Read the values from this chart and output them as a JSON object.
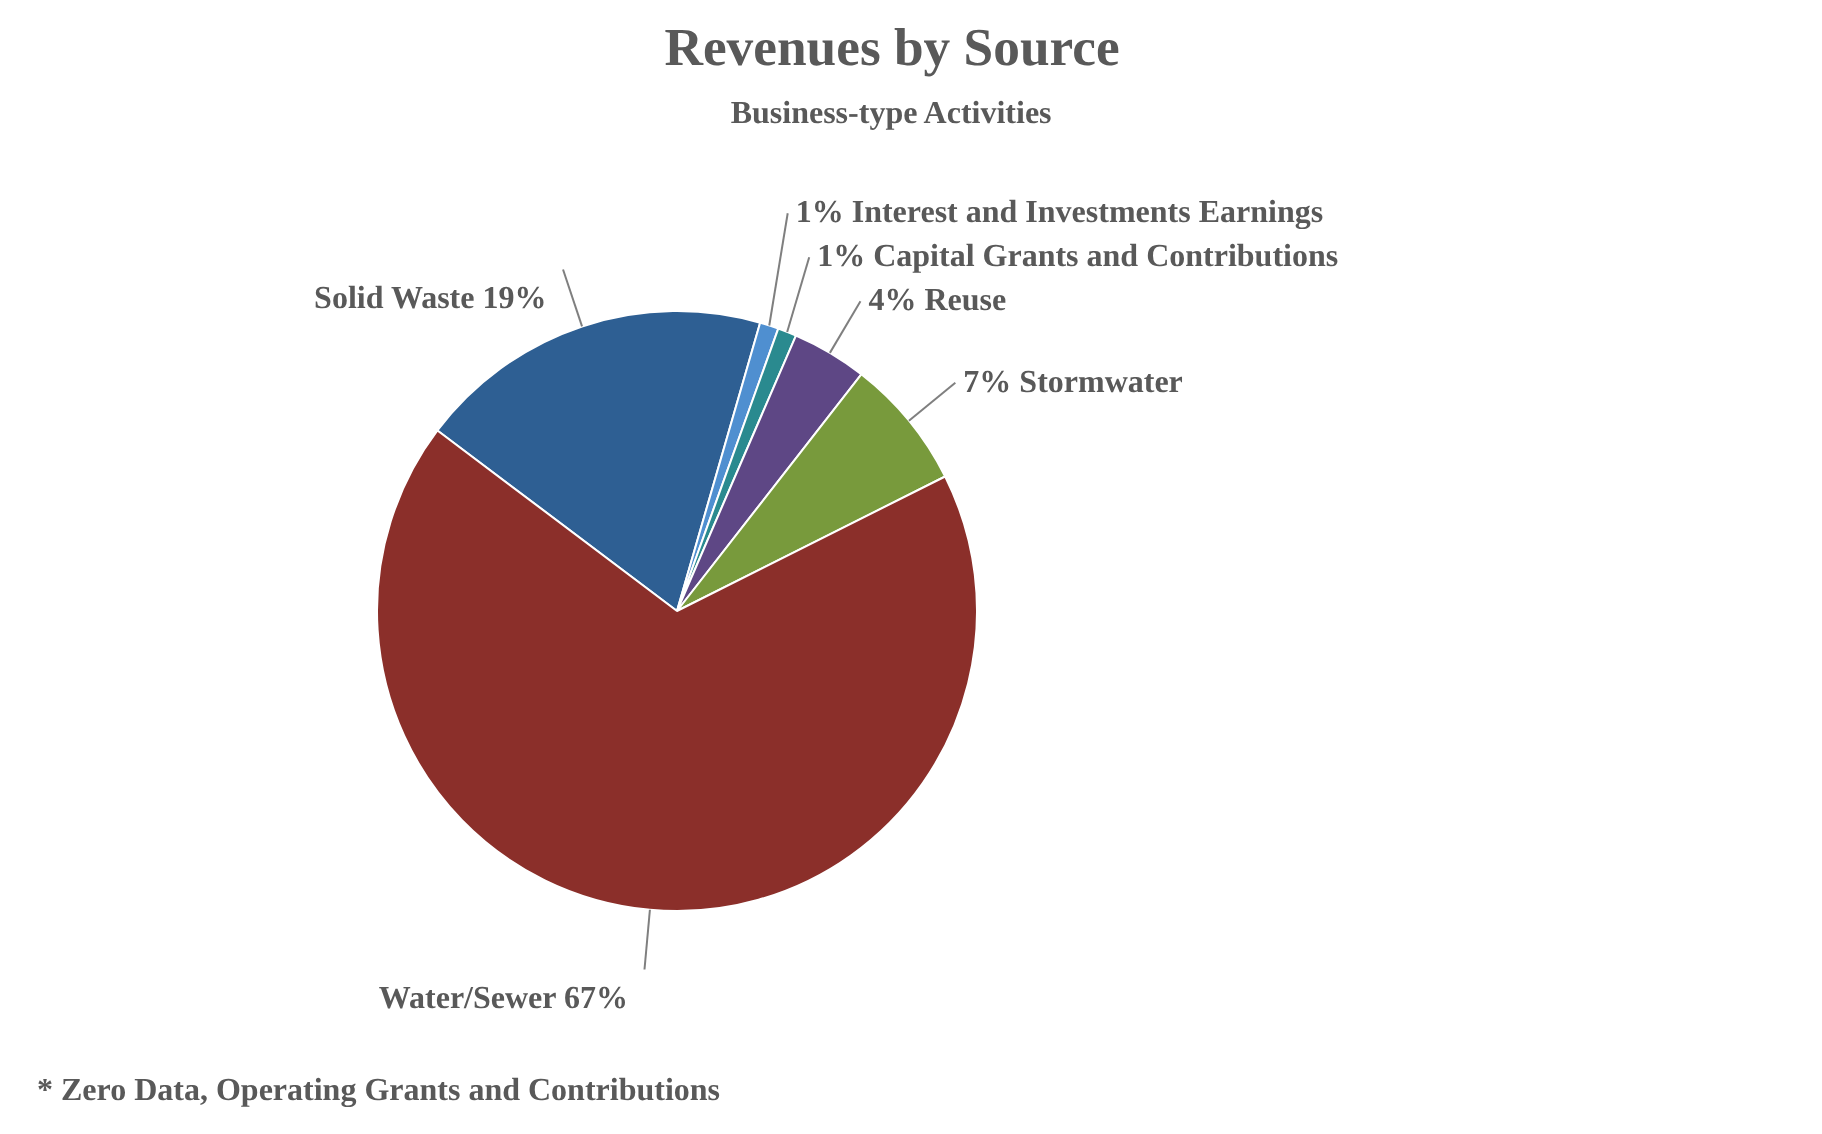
{
  "chart_data": {
    "type": "pie",
    "title": "Revenues by Source",
    "subtitle": "Business-type Activities",
    "categories": [
      "Solid Waste",
      "Interest and Investments Earnings",
      "Capital Grants and Contributions",
      "Reuse",
      "Stormwater",
      "Water/Sewer"
    ],
    "values": [
      19,
      1,
      1,
      4,
      7,
      67
    ],
    "value_labels": [
      "19%",
      "1%",
      "1%",
      "4%",
      "7%",
      "67%"
    ],
    "colors": [
      "#2e5f93",
      "#4f8fd0",
      "#2a8a8f",
      "#5e4785",
      "#789a3c",
      "#8b2f2a"
    ],
    "annotations": [
      "* Zero Data, Operating Grants and Contributions"
    ]
  }
}
